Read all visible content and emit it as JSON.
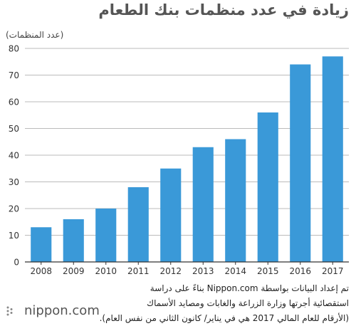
{
  "header": {
    "title": "زيادة في عدد منظمات بنك الطعام",
    "unit_label": "(عدد المنظمات)"
  },
  "chart_data": {
    "type": "bar",
    "title": "زيادة في عدد منظمات بنك الطعام",
    "ylabel": "(عدد المنظمات)",
    "xlabel": "",
    "categories": [
      "2008",
      "2009",
      "2010",
      "2011",
      "2012",
      "2013",
      "2014",
      "2015",
      "2016",
      "2017"
    ],
    "values": [
      13,
      16,
      20,
      28,
      35,
      43,
      46,
      56,
      74,
      77
    ],
    "ylim": [
      0,
      80
    ],
    "yticks": [
      0,
      10,
      20,
      30,
      40,
      50,
      60,
      70,
      80
    ],
    "grid": true,
    "legend": "none",
    "colors": {
      "bar": "#3a99d8",
      "grid": "#bbbbbb",
      "axis": "#333333"
    }
  },
  "footnote": {
    "line1": "تم إعداد البيانات بواسطة Nippon.com بناءً على دراسة",
    "line2": "استقصائية أجرتها وزارة الزراعة والغابات ومصايد الأسماك",
    "line3": "(الأرقام للعام المالي 2017 هي في يناير/ كانون الثاني من نفس العام)."
  },
  "logo": {
    "text": "nippon.com",
    "icon": "nippon-logo-icon"
  }
}
